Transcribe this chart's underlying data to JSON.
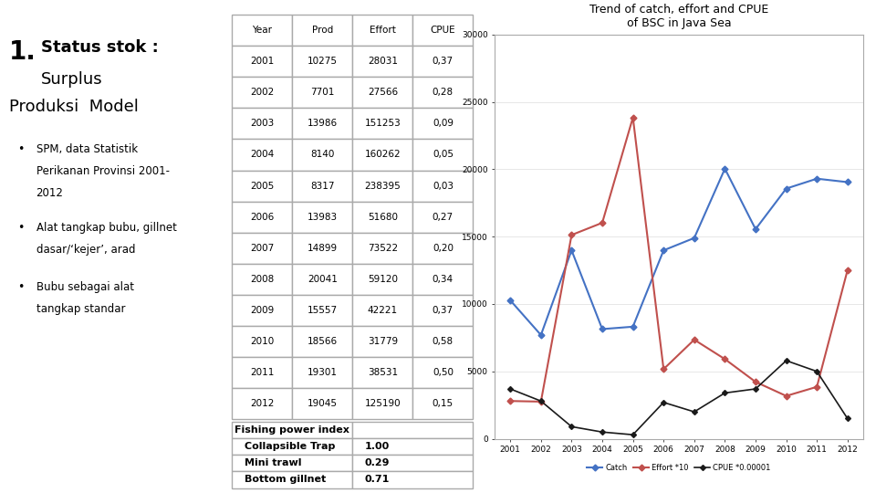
{
  "table_headers": [
    "Year",
    "Prod",
    "Effort",
    "CPUE"
  ],
  "table_data": [
    [
      "2001",
      "10275",
      "28031",
      "0,37"
    ],
    [
      "2002",
      "7701",
      "27566",
      "0,28"
    ],
    [
      "2003",
      "13986",
      "151253",
      "0,09"
    ],
    [
      "2004",
      "8140",
      "160262",
      "0,05"
    ],
    [
      "2005",
      "8317",
      "238395",
      "0,03"
    ],
    [
      "2006",
      "13983",
      "51680",
      "0,27"
    ],
    [
      "2007",
      "14899",
      "73522",
      "0,20"
    ],
    [
      "2008",
      "20041",
      "59120",
      "0,34"
    ],
    [
      "2009",
      "15557",
      "42221",
      "0,37"
    ],
    [
      "2010",
      "18566",
      "31779",
      "0,58"
    ],
    [
      "2011",
      "19301",
      "38531",
      "0,50"
    ],
    [
      "2012",
      "19045",
      "125190",
      "0,15"
    ]
  ],
  "fishing_power_header": "Fishing power index",
  "fishing_power_data": [
    [
      "Collapsible Trap",
      "1.00"
    ],
    [
      "Mini trawl",
      "0.29"
    ],
    [
      "Bottom gillnet",
      "0.71"
    ]
  ],
  "chart_title": "Trend of catch, effort and CPUE\nof BSC in Java Sea",
  "years": [
    2001,
    2002,
    2003,
    2004,
    2005,
    2006,
    2007,
    2008,
    2009,
    2010,
    2011,
    2012
  ],
  "catch": [
    10275,
    7701,
    13986,
    8140,
    8317,
    13983,
    14899,
    20041,
    15557,
    18566,
    19301,
    19045
  ],
  "effort_scaled": [
    2803.1,
    2756.6,
    15125.3,
    16026.2,
    23839.5,
    5168.0,
    7352.2,
    5912.0,
    4222.1,
    3177.9,
    3853.1,
    12519.0
  ],
  "cpue_scaled": [
    3700,
    2800,
    900,
    500,
    300,
    2700,
    2000,
    3400,
    3700,
    5800,
    5000,
    1500
  ],
  "catch_color": "#4472C4",
  "effort_color": "#C0504D",
  "cpue_color": "#1a1a1a",
  "background_color": "#ffffff",
  "title_number": "1.",
  "title_bold": "Status stok :",
  "title_normal": "Surplus",
  "title2": "Produksi  Model",
  "bullet1_line1": "SPM, data Statistik",
  "bullet1_line2": "Perikanan Provinsi 2001-",
  "bullet1_line3": "2012",
  "bullet2_line1": "Alat tangkap bubu, gillnet",
  "bullet2_line2": "dasar/‘kejer’, arad",
  "bullet3_line1": "Bubu sebagai alat",
  "bullet3_line2": "tangkap standar",
  "legend1": "Catch",
  "legend2": "Effort *10",
  "legend3": "CPUE *0.00001"
}
